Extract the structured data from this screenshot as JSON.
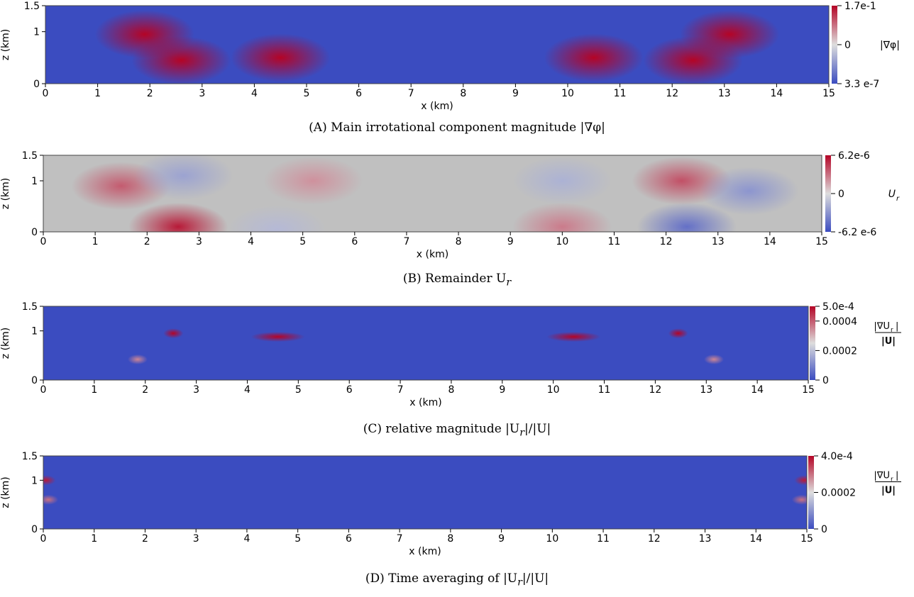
{
  "colors": {
    "cool_low": "#3b4cc0",
    "mid": "#dddddd",
    "warm_high": "#b40426",
    "neutral_gray": "#c0c0c0"
  },
  "chart_data": [
    {
      "type": "heatmap",
      "caption": "(A) Main irrotational component magnitude |∇φ|",
      "caption_tag": "(A)",
      "caption_text": "Main irrotational component magnitude |∇φ|",
      "xlabel": "x (km)",
      "ylabel": "z (km)",
      "xlim": [
        0,
        15
      ],
      "ylim": [
        0,
        1.5
      ],
      "xticks": [
        "0",
        "1",
        "2",
        "3",
        "4",
        "5",
        "6",
        "7",
        "8",
        "9",
        "10",
        "11",
        "12",
        "13",
        "14",
        "15"
      ],
      "yticks": [
        "0",
        "1",
        "1.5"
      ],
      "colorbar": {
        "title": "|∇φ|",
        "labels": [
          "1.7e-1",
          "0",
          "3.3 e-7"
        ],
        "max": 0.17,
        "min": 3.3e-07
      },
      "blobs": [
        {
          "x": 2.6,
          "z": 0.45,
          "value": 0.95
        },
        {
          "x": 12.4,
          "z": 0.45,
          "value": 0.95
        },
        {
          "x": 1.9,
          "z": 0.95,
          "value": 0.55
        },
        {
          "x": 13.1,
          "z": 0.95,
          "value": 0.55
        },
        {
          "x": 4.5,
          "z": 0.5,
          "value": 0.35
        },
        {
          "x": 10.5,
          "z": 0.5,
          "value": 0.35
        }
      ]
    },
    {
      "type": "heatmap",
      "caption": "(B) Remainder U_r",
      "caption_tag": "(B)",
      "caption_text": "Remainder U",
      "caption_sub": "r",
      "xlabel": "x (km)",
      "ylabel": "z (km)",
      "xlim": [
        0,
        15
      ],
      "ylim": [
        0,
        1.5
      ],
      "xticks": [
        "0",
        "1",
        "2",
        "3",
        "4",
        "5",
        "6",
        "7",
        "8",
        "9",
        "10",
        "11",
        "12",
        "13",
        "14",
        "15"
      ],
      "yticks": [
        "0",
        "1",
        "1.5"
      ],
      "colorbar": {
        "title": "U",
        "title_sub": "r",
        "labels": [
          "6.2e-6",
          "0",
          "-6.2 e-6"
        ],
        "max": 6.2e-06,
        "min": -6.2e-06
      },
      "blobs": [
        {
          "x": 2.6,
          "z": 0.1,
          "value": 0.9
        },
        {
          "x": 1.5,
          "z": 0.9,
          "value": 0.6
        },
        {
          "x": 2.7,
          "z": 1.1,
          "value": -0.4
        },
        {
          "x": 5.2,
          "z": 1.0,
          "value": 0.35
        },
        {
          "x": 10.0,
          "z": 1.0,
          "value": -0.3
        },
        {
          "x": 10.0,
          "z": 0.1,
          "value": 0.45
        },
        {
          "x": 12.3,
          "z": 1.0,
          "value": 0.65
        },
        {
          "x": 12.4,
          "z": 0.1,
          "value": -0.75
        },
        {
          "x": 13.6,
          "z": 0.8,
          "value": -0.5
        },
        {
          "x": 4.5,
          "z": 0.05,
          "value": -0.25
        }
      ]
    },
    {
      "type": "heatmap",
      "caption": "(C) relative magnitude |U_r|/|U|",
      "caption_tag": "(C)",
      "caption_text": "relative magnitude |U",
      "caption_sub": "r",
      "caption_tail": "|/|U|",
      "xlabel": "x (km)",
      "ylabel": "z (km)",
      "xlim": [
        0,
        15
      ],
      "ylim": [
        0,
        1.5
      ],
      "xticks": [
        "0",
        "1",
        "2",
        "3",
        "4",
        "5",
        "6",
        "7",
        "8",
        "9",
        "10",
        "11",
        "12",
        "13",
        "14",
        "15"
      ],
      "yticks": [
        "0",
        "1",
        "1.5"
      ],
      "colorbar": {
        "title_num": "|∇U",
        "title_sub": "r",
        "title_num_tail": "|",
        "title_den": "|U|",
        "labels": [
          "5.0e-4",
          "0.0004",
          "0.0002",
          "0"
        ],
        "max": 0.0005,
        "min": 0
      },
      "blobs": [
        {
          "x": 2.55,
          "z": 0.95,
          "value": 0.0005
        },
        {
          "x": 12.45,
          "z": 0.95,
          "value": 0.0005
        },
        {
          "x": 4.6,
          "z": 0.88,
          "value": 0.0005
        },
        {
          "x": 10.4,
          "z": 0.88,
          "value": 0.0005
        },
        {
          "x": 1.85,
          "z": 0.42,
          "value": 0.00035
        },
        {
          "x": 13.15,
          "z": 0.42,
          "value": 0.00035
        }
      ]
    },
    {
      "type": "heatmap",
      "caption": "(D) Time averaging of |U_r|/|U|",
      "caption_tag": "(D)",
      "caption_text": "Time averaging of |U",
      "caption_sub": "r",
      "caption_tail": "|/|U|",
      "xlabel": "x (km)",
      "ylabel": "z (km)",
      "xlim": [
        0,
        15
      ],
      "ylim": [
        0,
        1.5
      ],
      "xticks": [
        "0",
        "1",
        "2",
        "3",
        "4",
        "5",
        "6",
        "7",
        "8",
        "9",
        "10",
        "11",
        "12",
        "13",
        "14",
        "15"
      ],
      "yticks": [
        "0",
        "1",
        "1.5"
      ],
      "colorbar": {
        "title_num": "|∇U",
        "title_sub": "r",
        "title_num_tail": "|",
        "title_den": "|U|",
        "labels": [
          "4.0e-4",
          "0.0002",
          "0"
        ],
        "max": 0.0004,
        "min": 0
      },
      "blobs": [
        {
          "x": 0.05,
          "z": 1.0,
          "value": 0.00038
        },
        {
          "x": 14.95,
          "z": 1.0,
          "value": 0.00038
        },
        {
          "x": 0.1,
          "z": 0.6,
          "value": 0.0003
        },
        {
          "x": 14.9,
          "z": 0.6,
          "value": 0.0003
        }
      ]
    }
  ]
}
